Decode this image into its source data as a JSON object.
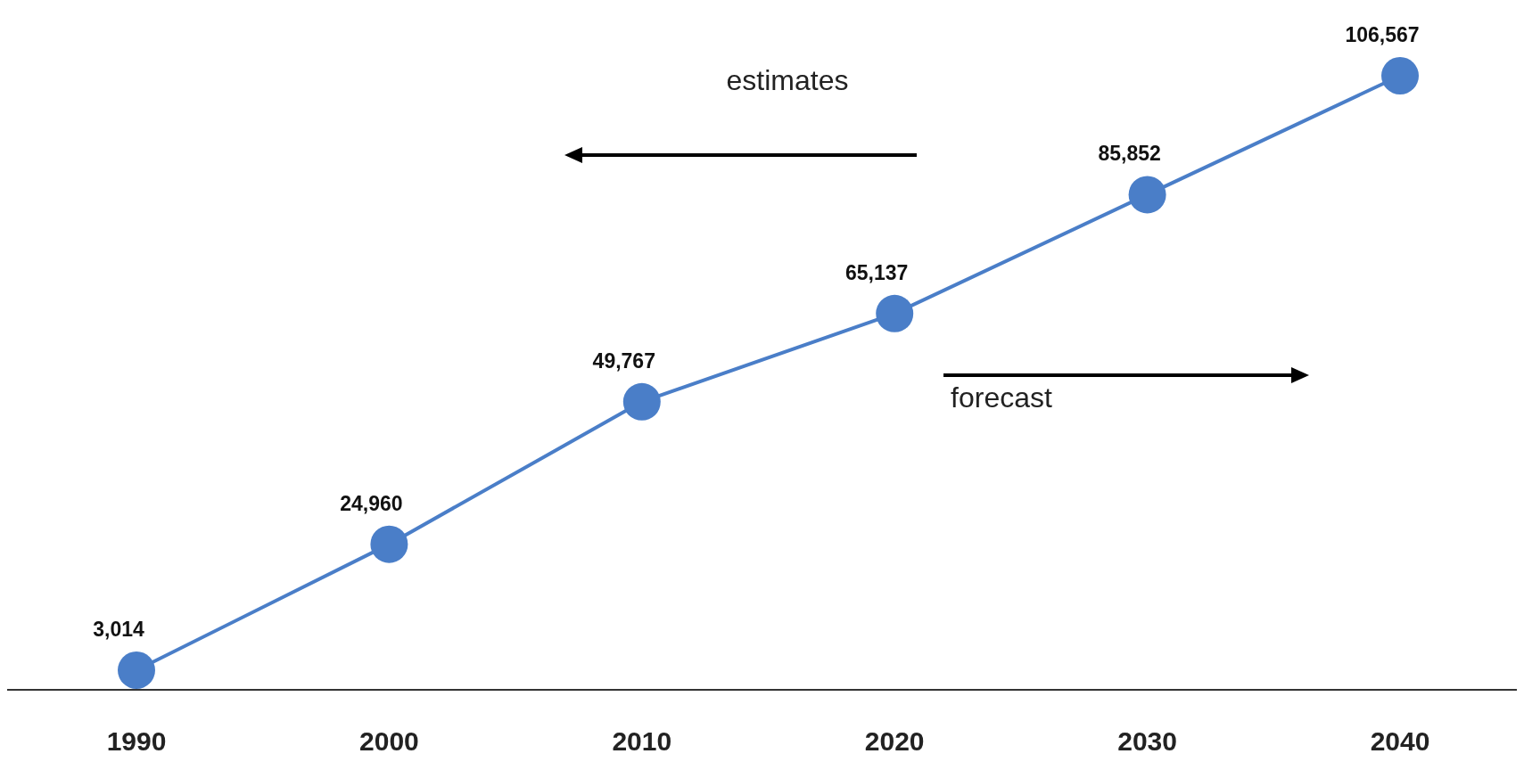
{
  "chart_data": {
    "type": "line",
    "categories": [
      "1990",
      "2000",
      "2010",
      "2020",
      "2030",
      "2040"
    ],
    "series": [
      {
        "color": "#4a7ec8",
        "values": [
          3014,
          24960,
          49767,
          65137,
          85852,
          106567
        ],
        "value_labels": [
          "3,014",
          "24,960",
          "49,767",
          "65,137",
          "85,852",
          "106,567"
        ]
      }
    ],
    "marker": "circle",
    "annotations": [
      "estimates",
      "forecast"
    ]
  }
}
